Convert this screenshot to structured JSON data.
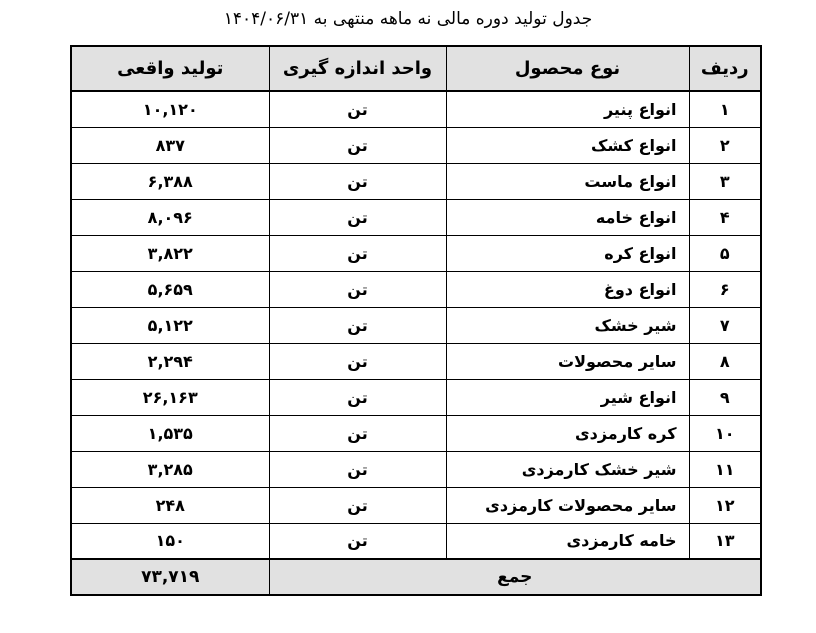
{
  "title": "جدول تولید دوره مالی نه ماهه منتهی به ۱۴۰۴/۰۶/۳۱",
  "table": {
    "headers": {
      "row_no": "ردیف",
      "product_type": "نوع محصول",
      "unit": "واحد اندازه گیری",
      "actual_production": "تولید واقعی"
    },
    "rows": [
      {
        "no": "۱",
        "product": "انواع پنیر",
        "unit": "تن",
        "value": "۱۰,۱۲۰"
      },
      {
        "no": "۲",
        "product": "انواع کشک",
        "unit": "تن",
        "value": "۸۳۷"
      },
      {
        "no": "۳",
        "product": "انواع ماست",
        "unit": "تن",
        "value": "۶,۳۸۸"
      },
      {
        "no": "۴",
        "product": "انواع خامه",
        "unit": "تن",
        "value": "۸,۰۹۶"
      },
      {
        "no": "۵",
        "product": "انواع کره",
        "unit": "تن",
        "value": "۳,۸۲۲"
      },
      {
        "no": "۶",
        "product": "انواع دوغ",
        "unit": "تن",
        "value": "۵,۶۵۹"
      },
      {
        "no": "۷",
        "product": "شیر خشک",
        "unit": "تن",
        "value": "۵,۱۲۲"
      },
      {
        "no": "۸",
        "product": "سایر محصولات",
        "unit": "تن",
        "value": "۲,۲۹۴"
      },
      {
        "no": "۹",
        "product": "انواع شیر",
        "unit": "تن",
        "value": "۲۶,۱۶۳"
      },
      {
        "no": "۱۰",
        "product": "کره کارمزدی",
        "unit": "تن",
        "value": "۱,۵۳۵"
      },
      {
        "no": "۱۱",
        "product": "شیر خشک کارمزدی",
        "unit": "تن",
        "value": "۳,۲۸۵"
      },
      {
        "no": "۱۲",
        "product": "سایر محصولات کارمزدی",
        "unit": "تن",
        "value": "۲۴۸"
      },
      {
        "no": "۱۳",
        "product": "خامه کارمزدی",
        "unit": "تن",
        "value": "۱۵۰"
      }
    ],
    "total": {
      "label": "جمع",
      "value": "۷۳,۷۱۹"
    }
  },
  "colors": {
    "header_bg": "#e1e1e1",
    "border": "#000000",
    "page_bg": "#ffffff",
    "text": "#000000"
  }
}
